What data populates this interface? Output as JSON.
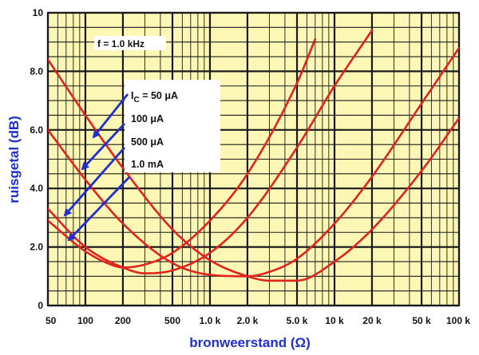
{
  "chart_data": {
    "type": "line",
    "xscale": "log",
    "xlim": [
      50,
      100000
    ],
    "ylim": [
      0,
      10
    ],
    "grid": true,
    "xlabel": "bronweerstand (Ω)",
    "ylabel": "ruisgetal (dB)",
    "annotation": "f = 1.0 kHz",
    "x_ticks": [
      {
        "value": 50,
        "label": "50"
      },
      {
        "value": 100,
        "label": "100"
      },
      {
        "value": 200,
        "label": "200"
      },
      {
        "value": 500,
        "label": "500"
      },
      {
        "value": 1000,
        "label": "1.0 k"
      },
      {
        "value": 2000,
        "label": "2.0 k"
      },
      {
        "value": 5000,
        "label": "5.0 k"
      },
      {
        "value": 10000,
        "label": "10 k"
      },
      {
        "value": 20000,
        "label": "20 k"
      },
      {
        "value": 50000,
        "label": "50 k"
      },
      {
        "value": 100000,
        "label": "100 k"
      }
    ],
    "y_ticks": [
      {
        "value": 0,
        "label": "0"
      },
      {
        "value": 2,
        "label": "2.0"
      },
      {
        "value": 4,
        "label": "4.0"
      },
      {
        "value": 6,
        "label": "6.0"
      },
      {
        "value": 8,
        "label": "8.0"
      },
      {
        "value": 10,
        "label": "10"
      }
    ],
    "series": [
      {
        "name": "I",
        "subscript": "C",
        "suffix": " = 50 μA",
        "x": [
          50,
          100,
          200,
          500,
          1000,
          2000,
          3000,
          5000,
          10000,
          20000,
          50000,
          100000
        ],
        "y": [
          8.4,
          6.5,
          4.7,
          2.6,
          1.55,
          1.0,
          0.85,
          0.85,
          1.5,
          2.6,
          4.6,
          6.4
        ]
      },
      {
        "name": "100 μA",
        "x": [
          50,
          100,
          200,
          500,
          1000,
          2000,
          3000,
          5000,
          10000,
          20000,
          50000,
          100000
        ],
        "y": [
          6.0,
          4.3,
          2.8,
          1.45,
          1.05,
          1.0,
          1.15,
          1.6,
          2.8,
          4.4,
          6.9,
          8.8
        ]
      },
      {
        "name": "500 μA",
        "x": [
          50,
          100,
          200,
          300,
          500,
          1000,
          2000,
          5000,
          10000,
          20000
        ],
        "y": [
          3.3,
          2.0,
          1.3,
          1.1,
          1.2,
          1.8,
          3.0,
          5.4,
          7.5,
          9.4
        ]
      },
      {
        "name": "1.0 mA",
        "x": [
          50,
          100,
          150,
          200,
          300,
          500,
          1000,
          2000,
          5000,
          7000
        ],
        "y": [
          2.9,
          1.85,
          1.45,
          1.3,
          1.4,
          1.8,
          2.9,
          4.5,
          7.6,
          9.1
        ]
      }
    ],
    "colors": {
      "background": "#fdf7b6",
      "grid": "#1a1a1a",
      "curve": "#e0231c",
      "arrow": "#1f2fd0",
      "label_box": "#ffffff",
      "axis_title": "#1f2fd0"
    }
  }
}
